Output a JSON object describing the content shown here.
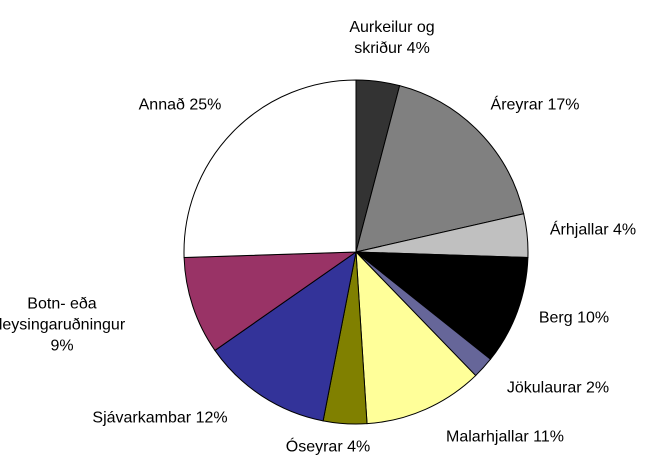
{
  "chart_data": {
    "type": "pie",
    "categories": [
      "Aurkeilur og skriður",
      "Áreyrar",
      "Árhjallar",
      "Berg",
      "Jökulaurar",
      "Malarhjallar",
      "Óseyrar",
      "Sjávarkambar",
      "Botn- eða leysingaruðningur",
      "Annað"
    ],
    "values": [
      4,
      17,
      4,
      10,
      2,
      11,
      4,
      12,
      9,
      25
    ],
    "value_labels": [
      "4%",
      "17%",
      "4%",
      "10%",
      "2%",
      "11%",
      "4%",
      "12%",
      "9%",
      "25%"
    ],
    "colors": [
      "#333333",
      "#808080",
      "#c0c0c0",
      "#000000",
      "#666699",
      "#ffff99",
      "#808000",
      "#333399",
      "#993366",
      "#ffffff"
    ]
  }
}
